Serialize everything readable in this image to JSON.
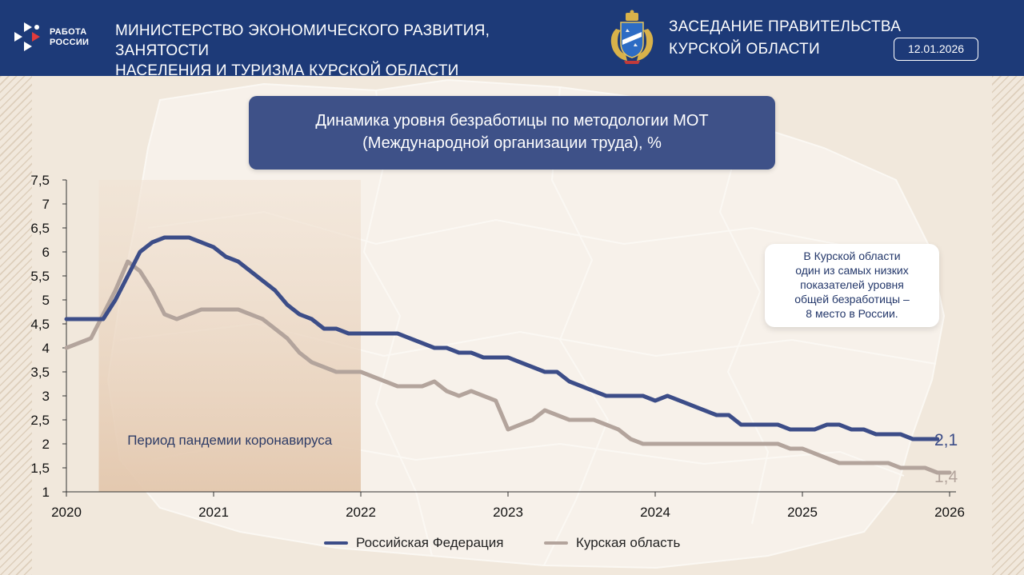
{
  "header": {
    "logo_line1": "РАБОТА",
    "logo_line2": "РОССИИ",
    "ministry_line1": "МИНИСТЕРСТВО ЭКОНОМИЧЕСКОГО РАЗВИТИЯ, ЗАНЯТОСТИ",
    "ministry_line2": "НАСЕЛЕНИЯ И ТУРИЗМА КУРСКОЙ ОБЛАСТИ",
    "session_line1": "ЗАСЕДАНИЕ ПРАВИТЕЛЬСТВА",
    "session_line2": "КУРСКОЙ ОБЛАСТИ",
    "date": "12.01.2026"
  },
  "note": {
    "line1": "В Курской области",
    "line2": "один из самых низких",
    "line3": "показателей уровня",
    "line4": "общей безработицы –",
    "line5": "8 место в России."
  },
  "colors": {
    "header_bg": "#1d3a78",
    "title_bg": "#3e5188",
    "russia": "#3c4d88",
    "kursk": "#b3a49c",
    "pandemic": "#e3c7ad"
  },
  "chart_data": {
    "type": "line",
    "title_line1": "Динамика уровня безработицы по методологии МОТ",
    "title_line2": "(Международной организации труда), %",
    "ylim": [
      1,
      7.5
    ],
    "y_ticks": [
      "1",
      "1,5",
      "2",
      "2,5",
      "3",
      "3,5",
      "4",
      "4,5",
      "5",
      "5,5",
      "6",
      "6,5",
      "7",
      "7,5"
    ],
    "xlim": [
      2020,
      2026
    ],
    "x_ticks": [
      "2020",
      "2021",
      "2022",
      "2023",
      "2024",
      "2025",
      "2026"
    ],
    "x_step_months": 1,
    "x_start": "2020-01",
    "shaded_region": {
      "label": "Период пандемии коронавируса",
      "from": 2020.22,
      "to": 2022.0
    },
    "series": [
      {
        "name": "Российская Федерация",
        "color": "#3c4d88",
        "end_label": "2,1",
        "values": [
          4.6,
          4.6,
          4.6,
          4.6,
          5.0,
          5.5,
          6.0,
          6.2,
          6.3,
          6.3,
          6.3,
          6.2,
          6.1,
          5.9,
          5.8,
          5.6,
          5.4,
          5.2,
          4.9,
          4.7,
          4.6,
          4.4,
          4.4,
          4.3,
          4.3,
          4.3,
          4.3,
          4.3,
          4.2,
          4.1,
          4.0,
          4.0,
          3.9,
          3.9,
          3.8,
          3.8,
          3.8,
          3.7,
          3.6,
          3.5,
          3.5,
          3.3,
          3.2,
          3.1,
          3.0,
          3.0,
          3.0,
          3.0,
          2.9,
          3.0,
          2.9,
          2.8,
          2.7,
          2.6,
          2.6,
          2.4,
          2.4,
          2.4,
          2.4,
          2.3,
          2.3,
          2.3,
          2.4,
          2.4,
          2.3,
          2.3,
          2.2,
          2.2,
          2.2,
          2.1,
          2.1,
          2.1
        ]
      },
      {
        "name": "Курская область",
        "color": "#b3a49c",
        "end_label": "1,4",
        "values": [
          4.0,
          4.1,
          4.2,
          4.7,
          5.2,
          5.8,
          5.6,
          5.2,
          4.7,
          4.6,
          4.7,
          4.8,
          4.8,
          4.8,
          4.8,
          4.7,
          4.6,
          4.4,
          4.2,
          3.9,
          3.7,
          3.6,
          3.5,
          3.5,
          3.5,
          3.4,
          3.3,
          3.2,
          3.2,
          3.2,
          3.3,
          3.1,
          3.0,
          3.1,
          3.0,
          2.9,
          2.3,
          2.4,
          2.5,
          2.7,
          2.6,
          2.5,
          2.5,
          2.5,
          2.4,
          2.3,
          2.1,
          2.0,
          2.0,
          2.0,
          2.0,
          2.0,
          2.0,
          2.0,
          2.0,
          2.0,
          2.0,
          2.0,
          2.0,
          1.9,
          1.9,
          1.8,
          1.7,
          1.6,
          1.6,
          1.6,
          1.6,
          1.6,
          1.5,
          1.5,
          1.5,
          1.4,
          1.4
        ]
      }
    ]
  }
}
